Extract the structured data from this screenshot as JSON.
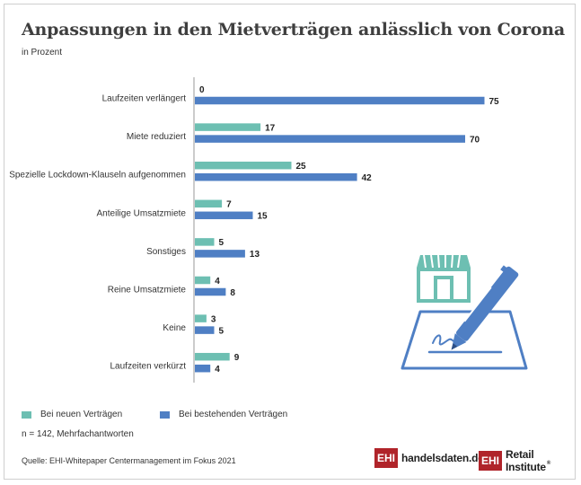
{
  "title": "Anpassungen in den Mietverträgen anlässlich von Corona",
  "subtitle": "in Prozent",
  "chart_data": {
    "type": "bar",
    "orientation": "horizontal",
    "title": "Anpassungen in den Mietverträgen anlässlich von Corona",
    "subtitle": "in Prozent",
    "categories": [
      "Laufzeiten verlängert",
      "Miete reduziert",
      "Spezielle Lockdown-Klauseln aufgenommen",
      "Anteilige Umsatzmiete",
      "Sonstiges",
      "Reine Umsatzmiete",
      "Keine",
      "Laufzeiten verkürzt"
    ],
    "series": [
      {
        "name": "Bei neuen Verträgen",
        "color": "#6dbfb2",
        "values": [
          0,
          17,
          25,
          7,
          5,
          4,
          3,
          9
        ]
      },
      {
        "name": "Bei bestehenden Verträgen",
        "color": "#4f7fc4",
        "values": [
          75,
          70,
          42,
          15,
          13,
          8,
          5,
          4
        ]
      }
    ],
    "xlim": [
      0,
      75
    ],
    "grid": false,
    "legend": "bottom-left"
  },
  "legend": {
    "items": [
      {
        "label": "Bei neuen Verträgen",
        "color": "#6dbfb2"
      },
      {
        "label": "Bei bestehenden Verträgen",
        "color": "#4f7fc4"
      }
    ]
  },
  "note": "n = 142, Mehrfachantworten",
  "source": "Quelle: EHI-Whitepaper Centermanagement im Fokus 2021",
  "logos": {
    "ehi_badge": "EHI",
    "handelsdaten": "handelsdaten.de",
    "retail": "Retail Institute",
    "registered": "®"
  },
  "illustration_icon": "storefront-signing-contract-icon"
}
